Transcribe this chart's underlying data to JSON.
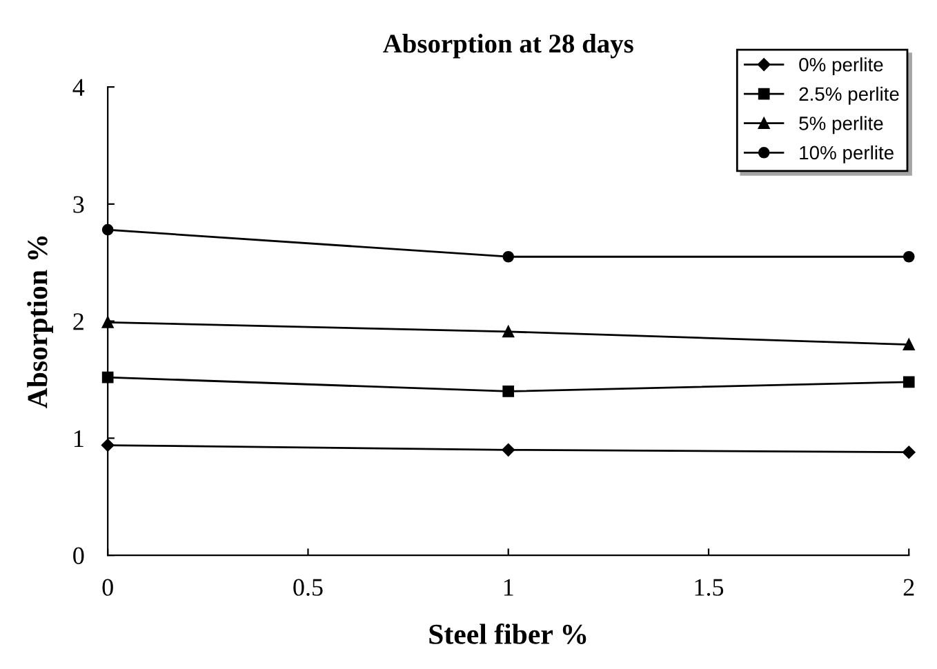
{
  "chart_data": {
    "type": "line",
    "title": "Absorption at 28 days",
    "xlabel": "Steel fiber %",
    "ylabel": "Absorption %",
    "x": [
      0,
      1,
      2
    ],
    "series": [
      {
        "name": "0% perlite",
        "color": "#000000",
        "marker": "diamond",
        "values": [
          0.94,
          0.9,
          0.88
        ]
      },
      {
        "name": "2.5% perlite",
        "color": "#000000",
        "marker": "square",
        "values": [
          1.52,
          1.4,
          1.48
        ]
      },
      {
        "name": "5% perlite",
        "color": "#000000",
        "marker": "triangle",
        "values": [
          1.99,
          1.91,
          1.8
        ]
      },
      {
        "name": "10% perlite",
        "color": "#000000",
        "marker": "circle",
        "values": [
          2.78,
          2.55,
          2.55
        ]
      }
    ],
    "xlim": [
      0,
      2
    ],
    "xticks": [
      0,
      0.5,
      1,
      1.5,
      2
    ],
    "ylim": [
      0,
      4
    ],
    "yticks": [
      0,
      1,
      2,
      3,
      4
    ],
    "grid": false,
    "legend": "top right",
    "line_style": "solid"
  }
}
